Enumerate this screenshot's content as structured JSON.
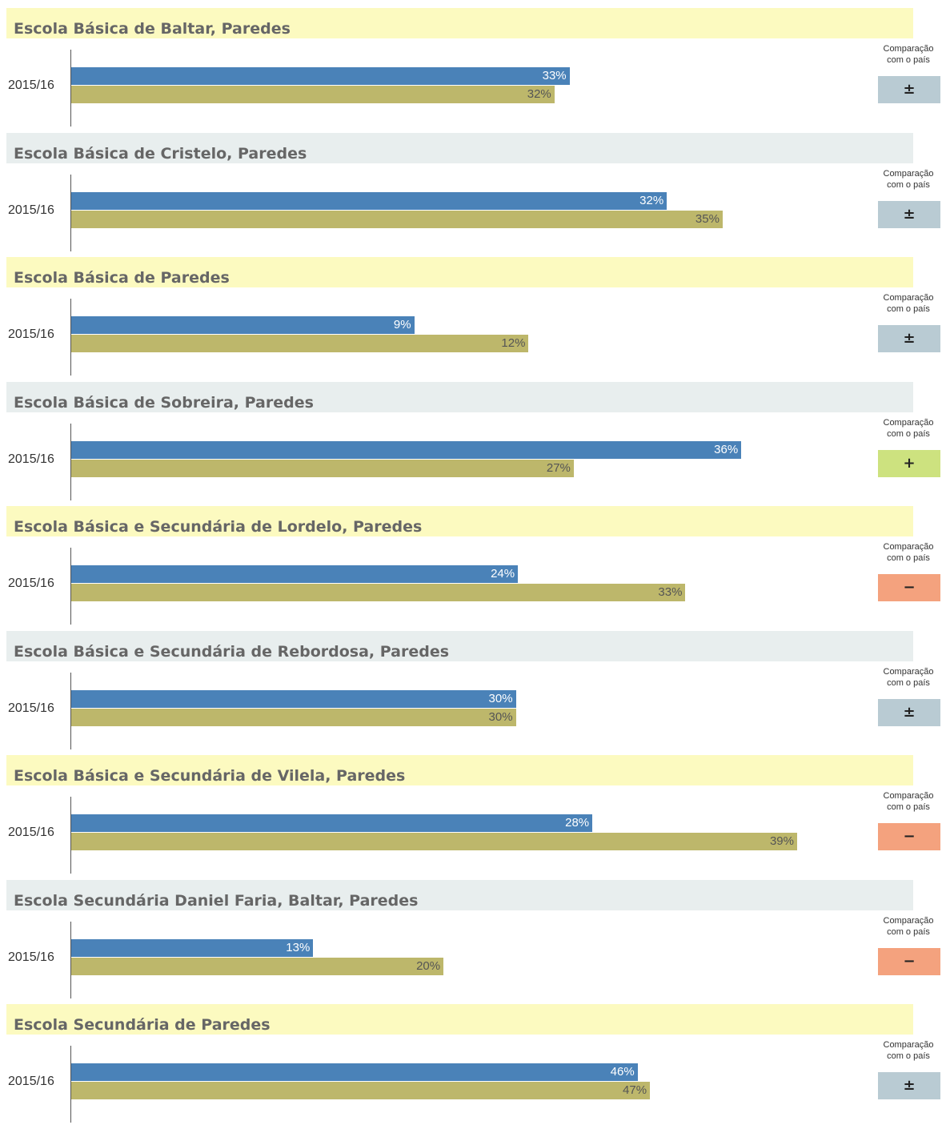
{
  "chart_data": [
    {
      "type": "bar",
      "title": "Escola Básica de Baltar, Paredes",
      "categories": [
        "2015/16"
      ],
      "xlim": [
        0,
        53
      ],
      "header_color": "#fcfac0",
      "series": [
        {
          "color": "#4a82b8",
          "values": [
            33
          ],
          "value_labels": [
            "33%"
          ]
        },
        {
          "color": "#bdb76b",
          "values": [
            32
          ],
          "value_labels": [
            "32%"
          ]
        }
      ],
      "comparison": {
        "label": "Comparação com o país",
        "symbol": "±",
        "color": "#b9cbd3"
      }
    },
    {
      "type": "bar",
      "title": "Escola Básica de Cristelo, Paredes",
      "categories": [
        "2015/16"
      ],
      "xlim": [
        0,
        43
      ],
      "header_color": "#e8eeee",
      "series": [
        {
          "color": "#4a82b8",
          "values": [
            32
          ],
          "value_labels": [
            "32%"
          ]
        },
        {
          "color": "#bdb76b",
          "values": [
            35
          ],
          "value_labels": [
            "35%"
          ]
        }
      ],
      "comparison": {
        "label": "Comparação com o país",
        "symbol": "±",
        "color": "#b9cbd3"
      }
    },
    {
      "type": "bar",
      "title": "Escola Básica de Paredes",
      "categories": [
        "2015/16"
      ],
      "xlim": [
        0,
        21
      ],
      "header_color": "#fcfac0",
      "series": [
        {
          "color": "#4a82b8",
          "values": [
            9
          ],
          "value_labels": [
            "9%"
          ]
        },
        {
          "color": "#bdb76b",
          "values": [
            12
          ],
          "value_labels": [
            "12%"
          ]
        }
      ],
      "comparison": {
        "label": "Comparação com o país",
        "symbol": "±",
        "color": "#b9cbd3"
      }
    },
    {
      "type": "bar",
      "title": "Escola Básica de Sobreira, Paredes",
      "categories": [
        "2015/16"
      ],
      "xlim": [
        0,
        43
      ],
      "header_color": "#e8eeee",
      "series": [
        {
          "color": "#4a82b8",
          "values": [
            36
          ],
          "value_labels": [
            "36%"
          ]
        },
        {
          "color": "#bdb76b",
          "values": [
            27
          ],
          "value_labels": [
            "27%"
          ]
        }
      ],
      "comparison": {
        "label": "Comparação com o país",
        "symbol": "+",
        "color": "#cde27f"
      }
    },
    {
      "type": "bar",
      "title": "Escola Básica e Secundária de Lordelo, Paredes",
      "categories": [
        "2015/16"
      ],
      "xlim": [
        0,
        43
      ],
      "header_color": "#fcfac0",
      "series": [
        {
          "color": "#4a82b8",
          "values": [
            24
          ],
          "value_labels": [
            "24%"
          ]
        },
        {
          "color": "#bdb76b",
          "values": [
            33
          ],
          "value_labels": [
            "33%"
          ]
        }
      ],
      "comparison": {
        "label": "Comparação com o país",
        "symbol": "−",
        "color": "#f4a27e"
      }
    },
    {
      "type": "bar",
      "title": "Escola Básica e Secundária de Rebordosa, Paredes",
      "categories": [
        "2015/16"
      ],
      "xlim": [
        0,
        54
      ],
      "header_color": "#e8eeee",
      "series": [
        {
          "color": "#4a82b8",
          "values": [
            30
          ],
          "value_labels": [
            "30%"
          ]
        },
        {
          "color": "#bdb76b",
          "values": [
            30
          ],
          "value_labels": [
            "30%"
          ]
        }
      ],
      "comparison": {
        "label": "Comparação com o país",
        "symbol": "±",
        "color": "#b9cbd3"
      }
    },
    {
      "type": "bar",
      "title": "Escola Básica e Secundária de Vilela, Paredes",
      "categories": [
        "2015/16"
      ],
      "xlim": [
        0,
        43
      ],
      "header_color": "#fcfac0",
      "series": [
        {
          "color": "#4a82b8",
          "values": [
            28
          ],
          "value_labels": [
            "28%"
          ]
        },
        {
          "color": "#bdb76b",
          "values": [
            39
          ],
          "value_labels": [
            "39%"
          ]
        }
      ],
      "comparison": {
        "label": "Comparação com o país",
        "symbol": "−",
        "color": "#f4a27e"
      }
    },
    {
      "type": "bar",
      "title": "Escola Secundária Daniel Faria, Baltar, Paredes",
      "categories": [
        "2015/16"
      ],
      "xlim": [
        0,
        43
      ],
      "header_color": "#e8eeee",
      "series": [
        {
          "color": "#4a82b8",
          "values": [
            13
          ],
          "value_labels": [
            "13%"
          ]
        },
        {
          "color": "#bdb76b",
          "values": [
            20
          ],
          "value_labels": [
            "20%"
          ]
        }
      ],
      "comparison": {
        "label": "Comparação com o país",
        "symbol": "−",
        "color": "#f4a27e"
      }
    },
    {
      "type": "bar",
      "title": "Escola Secundária de Paredes",
      "categories": [
        "2015/16"
      ],
      "xlim": [
        0,
        65
      ],
      "header_color": "#fcfac0",
      "series": [
        {
          "color": "#4a82b8",
          "values": [
            46
          ],
          "value_labels": [
            "46%"
          ]
        },
        {
          "color": "#bdb76b",
          "values": [
            47
          ],
          "value_labels": [
            "47%"
          ]
        }
      ],
      "comparison": {
        "label": "Comparação com o país",
        "symbol": "±",
        "color": "#b9cbd3"
      }
    }
  ]
}
